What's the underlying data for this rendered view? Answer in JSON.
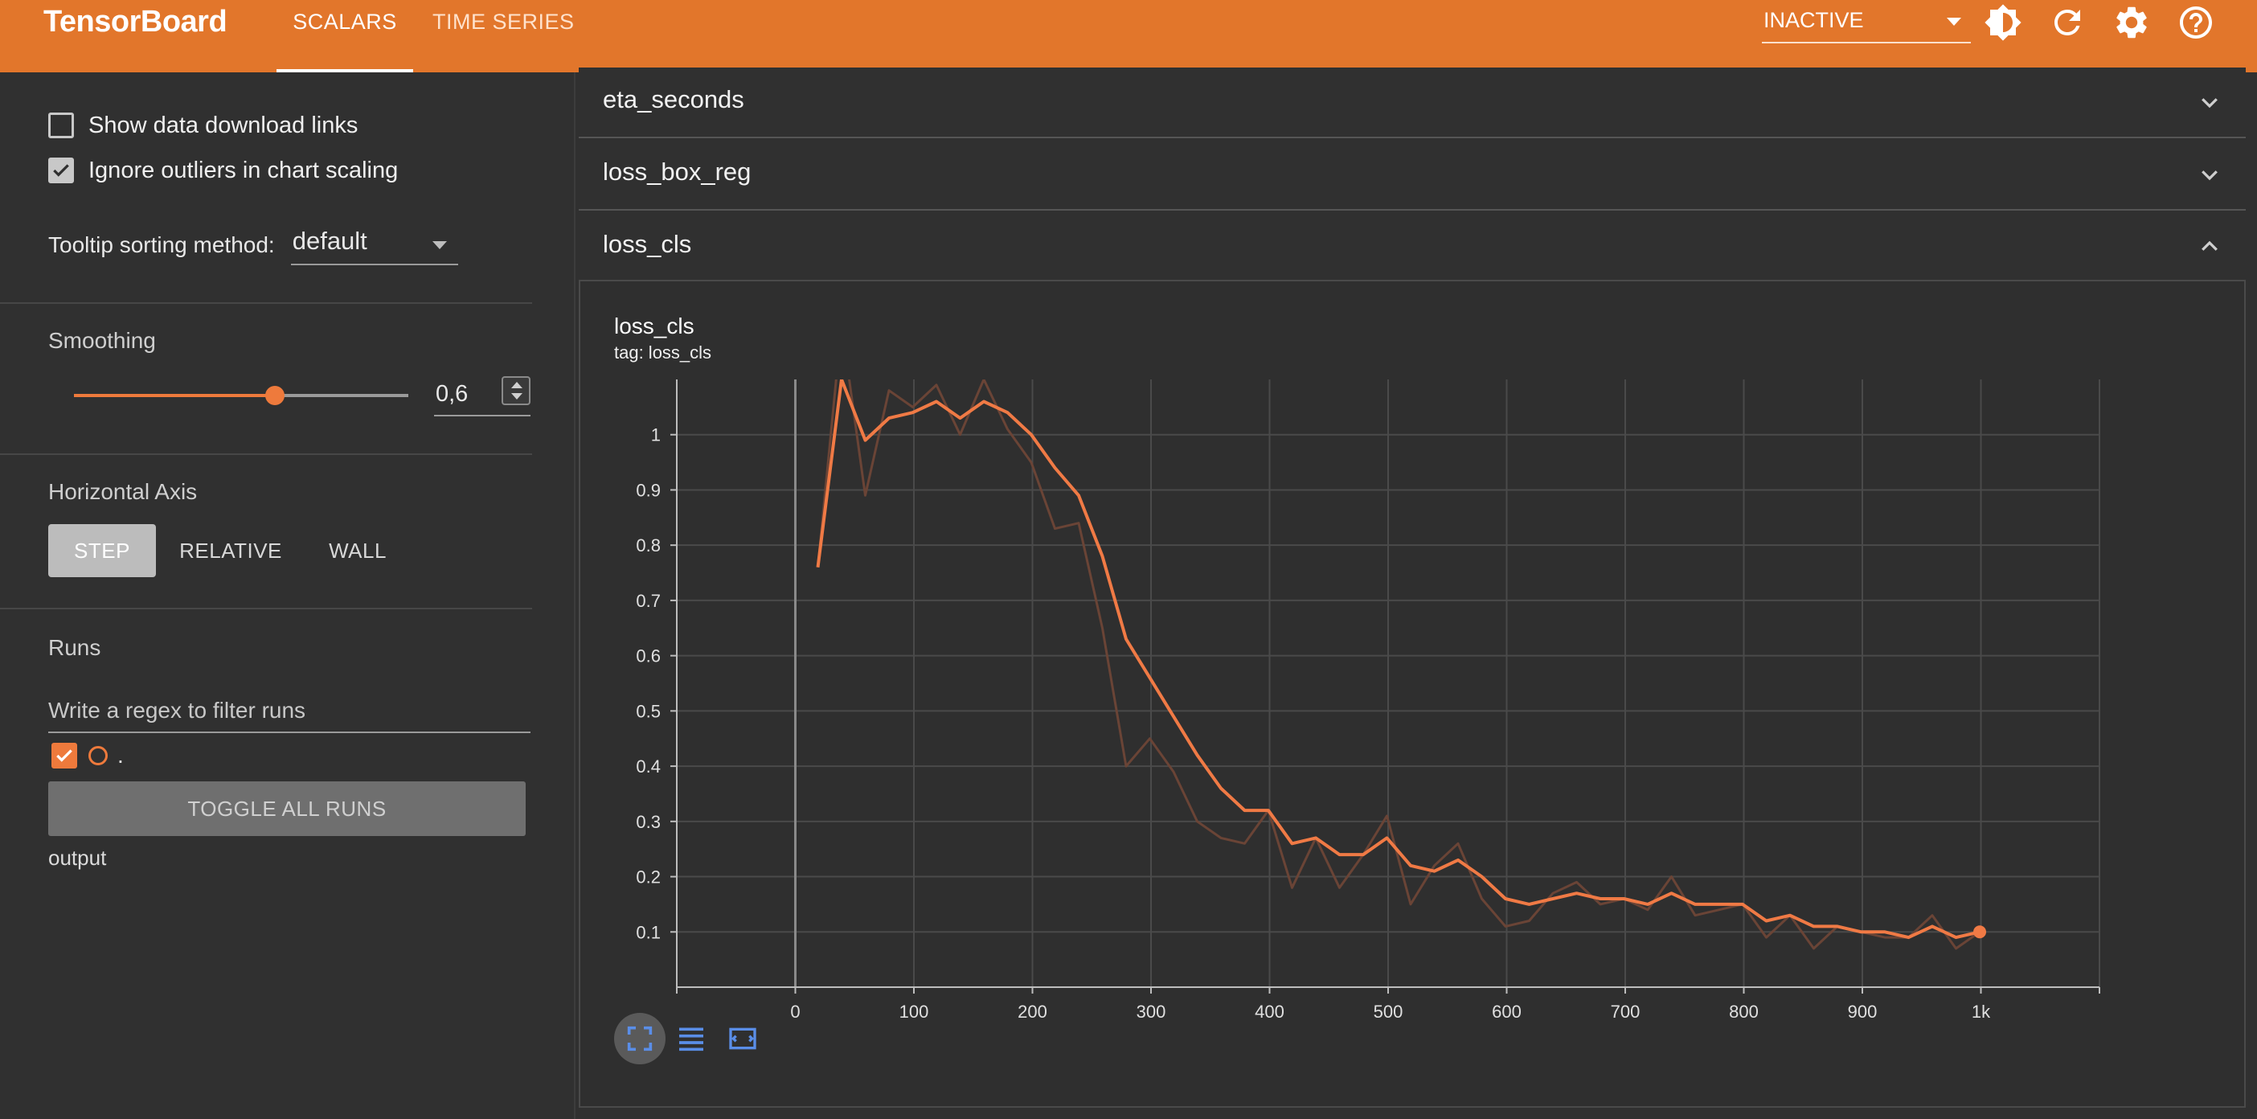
{
  "header": {
    "brand": "TensorBoard",
    "tabs": [
      {
        "label": "SCALARS",
        "active": true
      },
      {
        "label": "TIME SERIES",
        "active": false
      }
    ],
    "status": "INACTIVE",
    "icons": [
      "brightness-icon",
      "refresh-icon",
      "settings-icon",
      "help-icon"
    ],
    "bar_color": "#e2762b"
  },
  "sidebar": {
    "show_download_links": {
      "label": "Show data download links",
      "checked": false
    },
    "ignore_outliers": {
      "label": "Ignore outliers in chart scaling",
      "checked": true
    },
    "tooltip_label": "Tooltip sorting method:",
    "tooltip_value": "default",
    "smoothing": {
      "title": "Smoothing",
      "value_text": "0,6",
      "value": 0.6
    },
    "horizontal_axis": {
      "title": "Horizontal Axis",
      "options": [
        "STEP",
        "RELATIVE",
        "WALL"
      ],
      "selected": "STEP"
    },
    "runs": {
      "title": "Runs",
      "filter_placeholder": "Write a regex to filter runs",
      "items": [
        {
          "name": ".",
          "checked": true,
          "color": "#ee7a3c"
        }
      ],
      "toggle_label": "TOGGLE ALL RUNS",
      "dir_label": "output"
    }
  },
  "main": {
    "groups": [
      {
        "name": "eta_seconds",
        "expanded": false
      },
      {
        "name": "loss_box_reg",
        "expanded": false
      },
      {
        "name": "loss_cls",
        "expanded": true
      }
    ],
    "card": {
      "title": "loss_cls",
      "tag": "tag: loss_cls"
    }
  },
  "chart_data": {
    "type": "line",
    "title": "loss_cls",
    "xlabel": "",
    "ylabel": "",
    "xlim": [
      -100,
      1100
    ],
    "ylim": [
      0,
      1.1
    ],
    "x_ticks": [
      0,
      100,
      200,
      300,
      400,
      500,
      600,
      700,
      800,
      900,
      1000
    ],
    "x_tick_labels": [
      "0",
      "100",
      "200",
      "300",
      "400",
      "500",
      "600",
      "700",
      "800",
      "900",
      "1k"
    ],
    "y_ticks": [
      0.1,
      0.2,
      0.3,
      0.4,
      0.5,
      0.6,
      0.7,
      0.8,
      0.9,
      1
    ],
    "y_tick_labels": [
      "0.1",
      "0.2",
      "0.3",
      "0.4",
      "0.5",
      "0.6",
      "0.7",
      "0.8",
      "0.9",
      "1"
    ],
    "grid": true,
    "x": [
      19,
      39,
      59,
      79,
      99,
      119,
      139,
      159,
      179,
      199,
      219,
      239,
      259,
      279,
      299,
      319,
      339,
      359,
      379,
      399,
      419,
      439,
      459,
      479,
      499,
      519,
      539,
      559,
      579,
      599,
      619,
      639,
      659,
      679,
      699,
      719,
      739,
      759,
      779,
      799,
      819,
      839,
      859,
      879,
      899,
      919,
      939,
      959,
      979,
      999
    ],
    "series": [
      {
        "name": "smoothed",
        "color": "#f07a45",
        "values": [
          0.76,
          1.1,
          0.99,
          1.03,
          1.04,
          1.06,
          1.03,
          1.06,
          1.04,
          1.0,
          0.94,
          0.89,
          0.78,
          0.63,
          0.56,
          0.49,
          0.42,
          0.36,
          0.32,
          0.32,
          0.26,
          0.27,
          0.24,
          0.24,
          0.27,
          0.22,
          0.21,
          0.23,
          0.2,
          0.16,
          0.15,
          0.16,
          0.17,
          0.16,
          0.16,
          0.15,
          0.17,
          0.15,
          0.15,
          0.15,
          0.12,
          0.13,
          0.11,
          0.11,
          0.1,
          0.1,
          0.09,
          0.11,
          0.09,
          0.1
        ]
      },
      {
        "name": "raw",
        "color": "#6a4436",
        "values": [
          0.76,
          1.2,
          0.89,
          1.08,
          1.05,
          1.09,
          1.0,
          1.1,
          1.01,
          0.95,
          0.83,
          0.84,
          0.65,
          0.4,
          0.45,
          0.39,
          0.3,
          0.27,
          0.26,
          0.32,
          0.18,
          0.27,
          0.18,
          0.24,
          0.31,
          0.15,
          0.22,
          0.26,
          0.16,
          0.11,
          0.12,
          0.17,
          0.19,
          0.15,
          0.16,
          0.14,
          0.2,
          0.13,
          0.14,
          0.15,
          0.09,
          0.13,
          0.07,
          0.11,
          0.1,
          0.09,
          0.09,
          0.13,
          0.07,
          0.1
        ]
      }
    ]
  }
}
